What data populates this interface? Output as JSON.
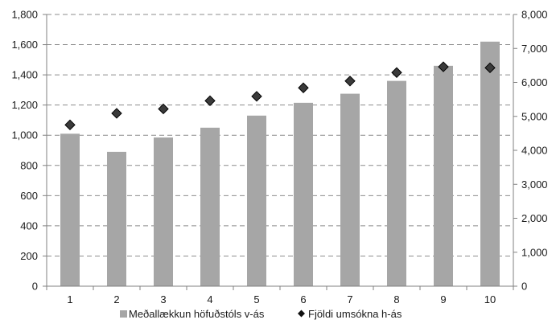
{
  "chart_data": {
    "type": "bar+scatter",
    "title": "",
    "categories": [
      "1",
      "2",
      "3",
      "4",
      "5",
      "6",
      "7",
      "8",
      "9",
      "10"
    ],
    "series": [
      {
        "name": "Meðallækkun höfuðstóls v-ás",
        "type": "bar",
        "axis": "left",
        "color": "#a6a6a6",
        "values": [
          1010,
          890,
          985,
          1050,
          1130,
          1215,
          1275,
          1360,
          1460,
          1620
        ]
      },
      {
        "name": "Fjöldi umsókna h-ás",
        "type": "scatter",
        "axis": "right",
        "marker": "diamond",
        "color": "#3a3a3a",
        "values": [
          4750,
          5090,
          5220,
          5460,
          5590,
          5840,
          6040,
          6290,
          6460,
          6430
        ]
      }
    ],
    "y_left": {
      "min": 0,
      "max": 1800,
      "ticks": [
        0,
        200,
        400,
        600,
        800,
        1000,
        1200,
        1400,
        1600,
        1800
      ],
      "tick_labels": [
        "0",
        "200",
        "400",
        "600",
        "800",
        "1,000",
        "1,200",
        "1,400",
        "1,600",
        "1,800"
      ]
    },
    "y_right": {
      "min": 0,
      "max": 8000,
      "ticks": [
        0,
        1000,
        2000,
        3000,
        4000,
        5000,
        6000,
        7000,
        8000
      ],
      "tick_labels": [
        "0",
        "1,000",
        "2,000",
        "3,000",
        "4,000",
        "5,000",
        "6,000",
        "7,000",
        "8,000"
      ]
    },
    "grid": "dashed-horizontal",
    "legend": "bottom-center",
    "legend_entries": [
      "Meðallækkun höfuðstóls v-ás",
      "Fjöldi umsókna h-ás"
    ]
  }
}
